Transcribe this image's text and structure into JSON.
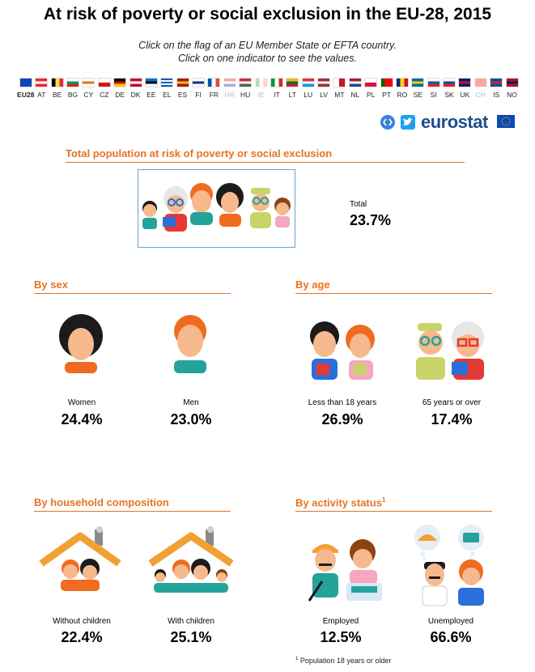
{
  "title": "At risk of poverty or social exclusion in the EU-28, 2015",
  "instructions": {
    "line1": "Click on the flag of an EU Member State or EFTA country.",
    "line2": "Click on one indicator to see the values."
  },
  "flags": [
    {
      "code": "EU28",
      "colors": [
        "#0e47b6"
      ],
      "dir": "h",
      "dim": false,
      "bold": true
    },
    {
      "code": "AT",
      "colors": [
        "#ed2939",
        "#ffffff",
        "#ed2939"
      ],
      "dir": "h",
      "dim": false
    },
    {
      "code": "BE",
      "colors": [
        "#000000",
        "#fae042",
        "#ed2939"
      ],
      "dir": "v",
      "dim": false
    },
    {
      "code": "BG",
      "colors": [
        "#ffffff",
        "#00966e",
        "#d62612"
      ],
      "dir": "h",
      "dim": false
    },
    {
      "code": "CY",
      "colors": [
        "#ffffff",
        "#d57800",
        "#ffffff"
      ],
      "dir": "h",
      "dim": false
    },
    {
      "code": "CZ",
      "colors": [
        "#ffffff",
        "#d7141a"
      ],
      "dir": "h",
      "dim": false
    },
    {
      "code": "DE",
      "colors": [
        "#000000",
        "#dd0000",
        "#ffce00"
      ],
      "dir": "h",
      "dim": false
    },
    {
      "code": "DK",
      "colors": [
        "#c8102e",
        "#ffffff",
        "#c8102e"
      ],
      "dir": "h",
      "dim": false
    },
    {
      "code": "EE",
      "colors": [
        "#0072ce",
        "#000000",
        "#ffffff"
      ],
      "dir": "h",
      "dim": false
    },
    {
      "code": "EL",
      "colors": [
        "#0d5eaf",
        "#ffffff",
        "#0d5eaf",
        "#ffffff",
        "#0d5eaf"
      ],
      "dir": "h",
      "dim": false
    },
    {
      "code": "ES",
      "colors": [
        "#aa151b",
        "#f1bf00",
        "#aa151b"
      ],
      "dir": "h",
      "dim": false
    },
    {
      "code": "FI",
      "colors": [
        "#ffffff",
        "#003580",
        "#ffffff"
      ],
      "dir": "h",
      "dim": false
    },
    {
      "code": "FR",
      "colors": [
        "#0055a4",
        "#ffffff",
        "#ef4135"
      ],
      "dir": "v",
      "dim": false
    },
    {
      "code": "HR",
      "colors": [
        "#ff0000",
        "#ffffff",
        "#171796"
      ],
      "dir": "h",
      "dim": true
    },
    {
      "code": "HU",
      "colors": [
        "#cd2a3e",
        "#ffffff",
        "#436f4d"
      ],
      "dir": "h",
      "dim": false
    },
    {
      "code": "IE",
      "colors": [
        "#169b62",
        "#ffffff",
        "#ff883e"
      ],
      "dir": "v",
      "dim": true
    },
    {
      "code": "IT",
      "colors": [
        "#009246",
        "#ffffff",
        "#ce2b37"
      ],
      "dir": "v",
      "dim": false
    },
    {
      "code": "LT",
      "colors": [
        "#fdb913",
        "#006a44",
        "#c1272d"
      ],
      "dir": "h",
      "dim": false
    },
    {
      "code": "LU",
      "colors": [
        "#ed2939",
        "#ffffff",
        "#00a1de"
      ],
      "dir": "h",
      "dim": false
    },
    {
      "code": "LV",
      "colors": [
        "#9e3039",
        "#ffffff",
        "#9e3039"
      ],
      "dir": "h",
      "dim": false
    },
    {
      "code": "MT",
      "colors": [
        "#ffffff",
        "#cf142b"
      ],
      "dir": "v",
      "dim": false
    },
    {
      "code": "NL",
      "colors": [
        "#ae1c28",
        "#ffffff",
        "#21468b"
      ],
      "dir": "h",
      "dim": false
    },
    {
      "code": "PL",
      "colors": [
        "#ffffff",
        "#dc143c"
      ],
      "dir": "h",
      "dim": false
    },
    {
      "code": "PT",
      "colors": [
        "#006600",
        "#ff0000",
        "#ff0000"
      ],
      "dir": "v",
      "dim": false
    },
    {
      "code": "RO",
      "colors": [
        "#002b7f",
        "#fcd116",
        "#ce1126"
      ],
      "dir": "v",
      "dim": false
    },
    {
      "code": "SE",
      "colors": [
        "#006aa7",
        "#fecc00",
        "#006aa7"
      ],
      "dir": "h",
      "dim": false
    },
    {
      "code": "SI",
      "colors": [
        "#ffffff",
        "#005da4",
        "#ed1c24"
      ],
      "dir": "h",
      "dim": false
    },
    {
      "code": "SK",
      "colors": [
        "#ffffff",
        "#0b4ea2",
        "#ee1c25"
      ],
      "dir": "h",
      "dim": false
    },
    {
      "code": "UK",
      "colors": [
        "#012169",
        "#c8102e",
        "#012169"
      ],
      "dir": "h",
      "dim": false
    },
    {
      "code": "CH",
      "colors": [
        "#ff0000"
      ],
      "dir": "h",
      "dim": true
    },
    {
      "code": "IS",
      "colors": [
        "#02529c",
        "#dc1e35",
        "#02529c"
      ],
      "dir": "h",
      "dim": false
    },
    {
      "code": "NO",
      "colors": [
        "#ba0c2f",
        "#00205b",
        "#ba0c2f"
      ],
      "dir": "h",
      "dim": false
    }
  ],
  "branding": {
    "share_icon": "share-code-icon",
    "twitter_icon": "twitter-icon",
    "logo_text": "eurostat",
    "eu_flag_icon": "eu-flag-icon"
  },
  "sections": {
    "total": {
      "title": "Total population at risk of poverty or social exclusion",
      "label": "Total",
      "value": "23.7%"
    },
    "sex": {
      "title": "By sex",
      "items": [
        {
          "label": "Women",
          "value": "24.4%"
        },
        {
          "label": "Men",
          "value": "23.0%"
        }
      ]
    },
    "age": {
      "title": "By age",
      "items": [
        {
          "label": "Less than 18 years",
          "value": "26.9%"
        },
        {
          "label": "65 years or over",
          "value": "17.4%"
        }
      ]
    },
    "household": {
      "title": "By household composition",
      "items": [
        {
          "label": "Without children",
          "value": "22.4%"
        },
        {
          "label": "With children",
          "value": "25.1%"
        }
      ]
    },
    "activity": {
      "title": "By activity status",
      "superscript": "1",
      "items": [
        {
          "label": "Employed",
          "value": "12.5%"
        },
        {
          "label": "Unemployed",
          "value": "66.6%"
        }
      ]
    }
  },
  "footnote": {
    "marker": "1",
    "text": "Population 18 years or older"
  },
  "colors": {
    "accent": "#e57324",
    "skin": "#f6b98e",
    "hair_dark": "#1b1b1b",
    "hair_orange": "#ef6b1f",
    "teal": "#24a39a",
    "roof": "#f1a033"
  }
}
